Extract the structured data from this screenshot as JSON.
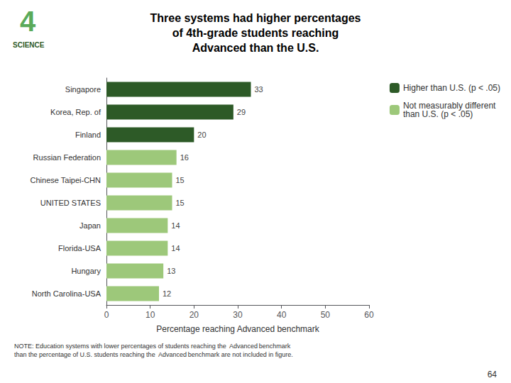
{
  "chart_data": {
    "type": "bar",
    "orientation": "horizontal",
    "title": "Three systems had higher percentages\nof 4th-grade students reaching\nAdvanced than the U.S.",
    "categories": [
      "Singapore",
      "Korea, Rep. of",
      "Finland",
      "Russian Federation",
      "Chinese Taipei-CHN",
      "UNITED STATES",
      "Japan",
      "Florida-USA",
      "Hungary",
      "North Carolina-USA"
    ],
    "series": [
      {
        "name": "Higher than U.S. (p < .05)",
        "color": "#2d5a27",
        "values": [
          33,
          29,
          20,
          null,
          null,
          null,
          null,
          null,
          null,
          null
        ]
      },
      {
        "name": "Not measurably different\nthan U.S. (p < .05)",
        "color": "#9dc87a",
        "values": [
          null,
          null,
          null,
          16,
          15,
          15,
          14,
          14,
          13,
          12
        ]
      }
    ],
    "xlabel": "Percentage reaching Advanced benchmark",
    "xlim": [
      0,
      60
    ],
    "xticks": [
      0,
      10,
      20,
      30,
      40,
      50,
      60
    ],
    "data_labels": true,
    "grid": false,
    "legend": "upper right",
    "annotations": [
      "4",
      "SCIENCE",
      "NOTE: Education systems with lower percentages of students reaching the  Advanced benchmark\nthan the percentage of U.S. students reaching the  Advanced benchmark are not included in figure.",
      "64"
    ]
  }
}
